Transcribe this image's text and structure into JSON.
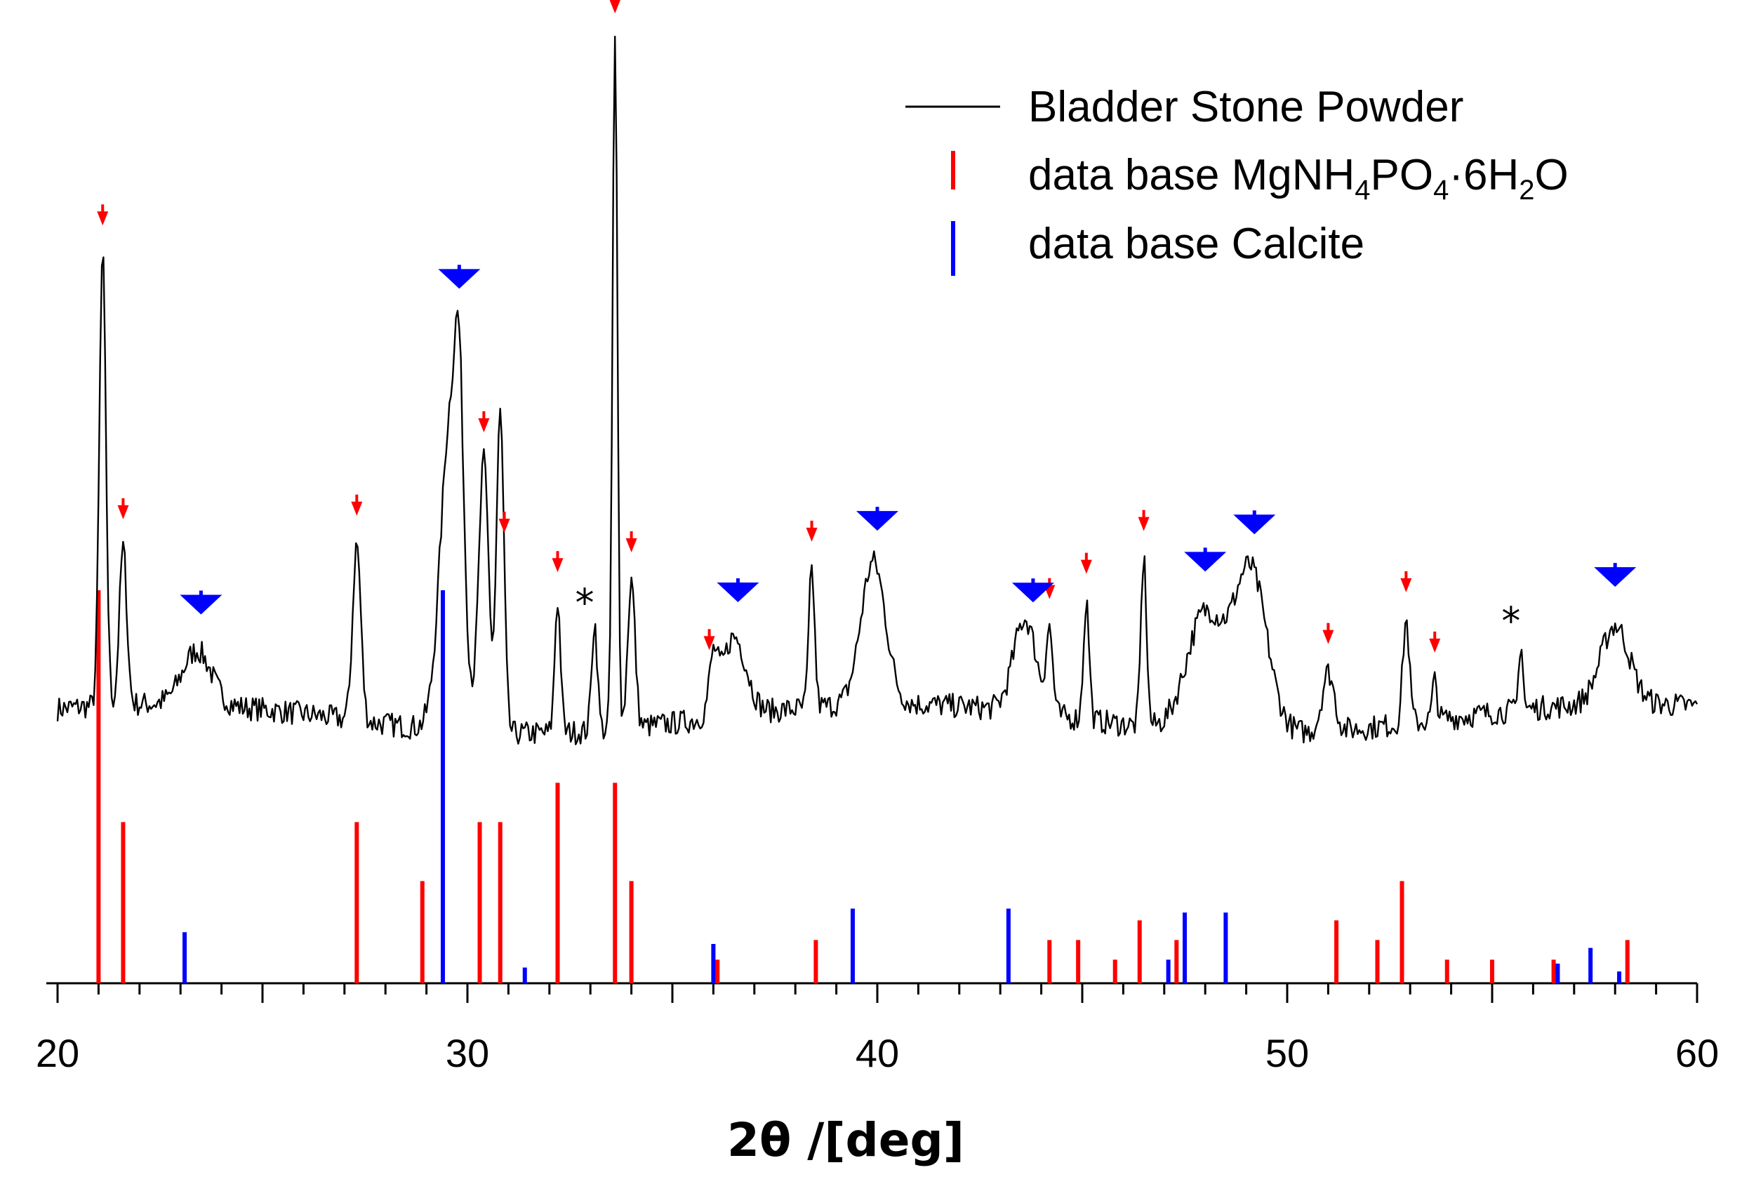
{
  "chart_data": {
    "type": "line",
    "title": "",
    "xlabel": "2θ /[deg]",
    "ylabel": "",
    "xlim": [
      20,
      60
    ],
    "xticks": [
      20,
      30,
      40,
      50,
      60
    ],
    "grid": false,
    "legend_position": "top-right",
    "legend": [
      {
        "name": "Bladder Stone Powder",
        "style": "line",
        "color": "#000000"
      },
      {
        "name": "data base MgNH4PO4·6H2O",
        "style": "stick",
        "color": "#ff0000"
      },
      {
        "name": "data base Calcite",
        "style": "stick",
        "color": "#0000ff"
      }
    ],
    "series": [
      {
        "name": "Bladder Stone Powder",
        "color": "#000000",
        "baseline": 0.18,
        "noise": 0.025,
        "peaks": [
          {
            "x": 21.1,
            "h": 0.92,
            "w": 0.08
          },
          {
            "x": 21.6,
            "h": 0.32,
            "w": 0.09
          },
          {
            "x": 23.4,
            "h": 0.11,
            "w": 0.35
          },
          {
            "x": 27.3,
            "h": 0.36,
            "w": 0.1
          },
          {
            "x": 29.6,
            "h": 0.65,
            "w": 0.25
          },
          {
            "x": 29.8,
            "h": 0.35,
            "w": 0.1
          },
          {
            "x": 30.4,
            "h": 0.55,
            "w": 0.12
          },
          {
            "x": 30.8,
            "h": 0.65,
            "w": 0.09
          },
          {
            "x": 32.2,
            "h": 0.27,
            "w": 0.07
          },
          {
            "x": 33.1,
            "h": 0.22,
            "w": 0.07
          },
          {
            "x": 33.6,
            "h": 1.4,
            "w": 0.06
          },
          {
            "x": 34.0,
            "h": 0.3,
            "w": 0.09
          },
          {
            "x": 36.0,
            "h": 0.1,
            "w": 0.1
          },
          {
            "x": 36.5,
            "h": 0.16,
            "w": 0.3
          },
          {
            "x": 38.4,
            "h": 0.28,
            "w": 0.07
          },
          {
            "x": 39.9,
            "h": 0.29,
            "w": 0.3
          },
          {
            "x": 43.6,
            "h": 0.19,
            "w": 0.28
          },
          {
            "x": 44.2,
            "h": 0.16,
            "w": 0.08
          },
          {
            "x": 45.1,
            "h": 0.24,
            "w": 0.07
          },
          {
            "x": 46.5,
            "h": 0.34,
            "w": 0.07
          },
          {
            "x": 48.0,
            "h": 0.24,
            "w": 0.45
          },
          {
            "x": 49.1,
            "h": 0.33,
            "w": 0.4
          },
          {
            "x": 51.0,
            "h": 0.12,
            "w": 0.15
          },
          {
            "x": 52.9,
            "h": 0.21,
            "w": 0.08
          },
          {
            "x": 53.6,
            "h": 0.08,
            "w": 0.06
          },
          {
            "x": 55.7,
            "h": 0.14,
            "w": 0.05
          },
          {
            "x": 58.0,
            "h": 0.16,
            "w": 0.35
          }
        ]
      },
      {
        "name": "data base MgNH4PO4·6H2O",
        "color": "#ff0000",
        "type": "stick",
        "x": [
          21.0,
          21.6,
          27.3,
          28.9,
          30.3,
          30.8,
          32.2,
          33.6,
          34.0,
          36.1,
          38.5,
          44.2,
          44.9,
          45.8,
          46.4,
          47.3,
          51.2,
          52.2,
          52.8,
          53.9,
          55.0,
          56.5,
          58.3
        ],
        "values": [
          100,
          41,
          41,
          26,
          41,
          41,
          51,
          51,
          26,
          6,
          11,
          11,
          11,
          6,
          16,
          11,
          16,
          11,
          26,
          6,
          6,
          6,
          11
        ]
      },
      {
        "name": "data base Calcite",
        "color": "#0000ff",
        "type": "stick",
        "x": [
          23.1,
          29.4,
          31.4,
          36.0,
          39.4,
          43.2,
          47.1,
          47.5,
          48.5,
          56.6,
          57.4,
          58.1
        ],
        "values": [
          13,
          100,
          4,
          10,
          19,
          19,
          6,
          18,
          18,
          5,
          9,
          3
        ]
      }
    ],
    "markers": {
      "MgNH4PO4": {
        "color": "#ff0000",
        "x": [
          21.1,
          21.6,
          27.3,
          30.4,
          30.9,
          32.2,
          33.6,
          34.0,
          35.9,
          38.4,
          44.2,
          45.1,
          46.5,
          51.0,
          52.9,
          53.6
        ]
      },
      "Calcite": {
        "color": "#0000ff",
        "x": [
          23.5,
          29.8,
          36.6,
          40.0,
          43.8,
          48.0,
          49.2,
          58.0
        ]
      }
    },
    "annotations": [
      {
        "text": "*",
        "x": 33.1
      },
      {
        "text": "*",
        "x": 55.7
      }
    ]
  }
}
